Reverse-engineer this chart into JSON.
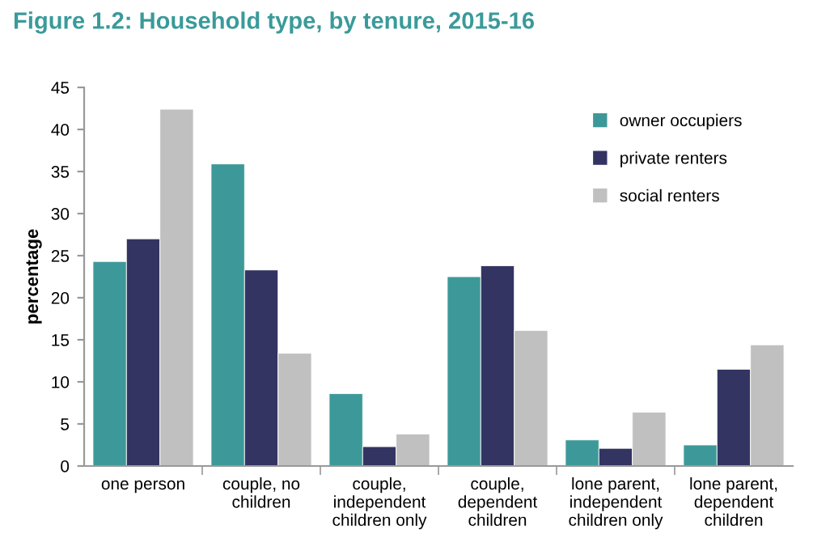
{
  "chart_data": {
    "type": "bar",
    "title": "Figure 1.2: Household type, by tenure, 2015-16",
    "ylabel": "percentage",
    "categories": [
      "one person",
      "couple, no\nchildren",
      "couple,\nindependent\nchildren only",
      "couple,\ndependent\nchildren",
      "lone parent,\nindependent\nchildren only",
      "lone parent,\ndependent\nchildren"
    ],
    "series": [
      {
        "name": "owner occupiers",
        "color": "#3d9999",
        "values": [
          24.3,
          35.9,
          8.6,
          22.5,
          3.1,
          2.5
        ]
      },
      {
        "name": "private renters",
        "color": "#343462",
        "values": [
          27.0,
          23.3,
          2.3,
          23.8,
          2.1,
          11.5
        ]
      },
      {
        "name": "social renters",
        "color": "#c0c0c0",
        "values": [
          42.4,
          13.4,
          3.8,
          16.1,
          6.4,
          14.4
        ]
      }
    ],
    "ylim": [
      0,
      45
    ],
    "yticks": [
      0,
      5,
      10,
      15,
      20,
      25,
      30,
      35,
      40,
      45
    ],
    "grid": false,
    "legend": "top right"
  }
}
